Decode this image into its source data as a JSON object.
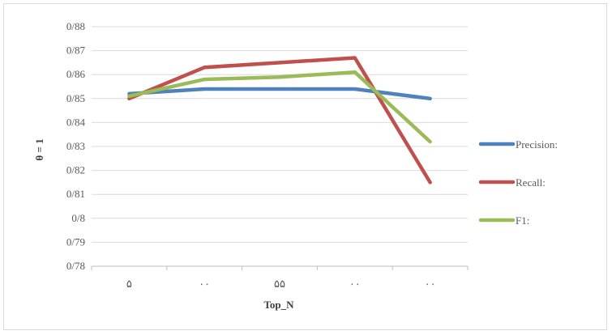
{
  "chart_data": {
    "type": "line",
    "categories": [
      "۵",
      "۰۰",
      "۵۵",
      "۰۰",
      "۰۰"
    ],
    "y_tick_labels": [
      "0/78",
      "0/79",
      "0/8",
      "0/81",
      "0/82",
      "0/83",
      "0/84",
      "0/85",
      "0/86",
      "0/87",
      "0/88"
    ],
    "ylim": [
      0.78,
      0.88
    ],
    "xlabel": "Top_N",
    "ylabel": "θ = 1",
    "grid": true,
    "legend_position": "right",
    "series": [
      {
        "name": "Precision:",
        "color": "#4f81bd",
        "values": [
          0.852,
          0.854,
          0.854,
          0.854,
          0.85
        ]
      },
      {
        "name": "Recall:",
        "color": "#c0504d",
        "values": [
          0.85,
          0.863,
          0.865,
          0.867,
          0.815
        ]
      },
      {
        "name": "F1:",
        "color": "#9bbb59",
        "values": [
          0.851,
          0.858,
          0.859,
          0.861,
          0.832
        ]
      }
    ]
  }
}
